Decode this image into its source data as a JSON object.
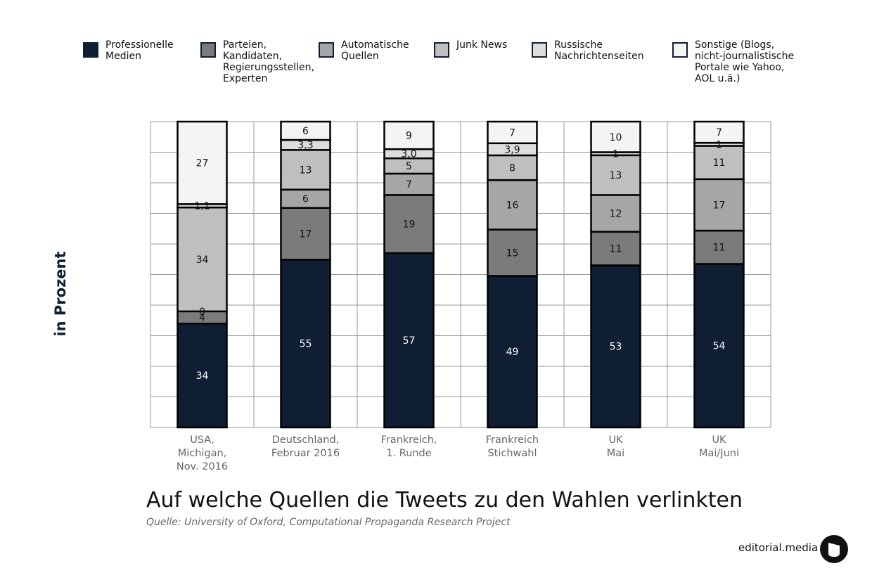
{
  "chart_data": {
    "type": "bar",
    "stacked": true,
    "title": "Auf welche Quellen die Tweets zu den Wahlen verlinkten",
    "ylabel": "in Prozent",
    "ylim": [
      0,
      100
    ],
    "grid": true,
    "legend_position": "top",
    "categories": [
      [
        "USA,",
        "Michigan,",
        "Nov. 2016"
      ],
      [
        "Deutschland,",
        "Februar 2016"
      ],
      [
        "Frankreich,",
        "1. Runde"
      ],
      [
        "Frankreich",
        "Stichwahl"
      ],
      [
        "UK",
        "Mai"
      ],
      [
        "UK",
        "Mai/Juni"
      ]
    ],
    "series": [
      {
        "name": "Professionelle\nMedien",
        "color": "#0f1e33",
        "values": [
          34,
          55,
          57,
          49,
          53,
          54
        ],
        "labels": [
          "34",
          "55",
          "57",
          "49",
          "53",
          "54"
        ]
      },
      {
        "name": "Parteien,\nKandidaten,\nRegierungsstellen,\nExperten",
        "color": "#7b7b7b",
        "values": [
          4,
          17,
          19,
          15,
          11,
          11
        ],
        "labels": [
          "4",
          "17",
          "19",
          "15",
          "11",
          "11"
        ]
      },
      {
        "name": "Automatische\nQuellen",
        "color": "#a6a6a6",
        "values": [
          0,
          6,
          7,
          16,
          12,
          17
        ],
        "labels": [
          "0",
          "6",
          "7",
          "16",
          "12",
          "17"
        ]
      },
      {
        "name": "Junk News",
        "color": "#bfbfbf",
        "values": [
          34,
          13,
          5,
          8,
          13,
          11
        ],
        "labels": [
          "34",
          "13",
          "5",
          "8",
          "13",
          "11"
        ]
      },
      {
        "name": "Russische\nNachrichtenseiten",
        "color": "#dddddd",
        "values": [
          1.1,
          3.3,
          3.0,
          3.9,
          1,
          1
        ],
        "labels": [
          "1,1",
          "3,3",
          "3,0",
          "3,9",
          "1",
          "1"
        ]
      },
      {
        "name": "Sonstige (Blogs,\nnicht-journalistische\nPortale wie Yahoo,\nAOL u.ä.)",
        "color": "#f4f4f4",
        "values": [
          27,
          6,
          9,
          7,
          10,
          7
        ],
        "labels": [
          "27",
          "6",
          "9",
          "7",
          "10",
          "7"
        ]
      }
    ]
  },
  "source": "Quelle: University of Oxford, Computational Propaganda Research Project",
  "brand": {
    "name": "editorial.media",
    "logo_icon": "editorial-media-logo-icon"
  }
}
